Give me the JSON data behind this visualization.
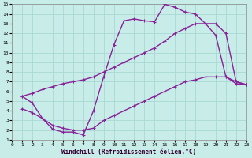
{
  "xlabel": "Windchill (Refroidissement éolien,°C)",
  "xlim": [
    0,
    23
  ],
  "ylim": [
    1,
    15
  ],
  "xticks": [
    0,
    1,
    2,
    3,
    4,
    5,
    6,
    7,
    8,
    9,
    10,
    11,
    12,
    13,
    14,
    15,
    16,
    17,
    18,
    19,
    20,
    21,
    22,
    23
  ],
  "yticks": [
    1,
    2,
    3,
    4,
    5,
    6,
    7,
    8,
    9,
    10,
    11,
    12,
    13,
    14,
    15
  ],
  "bg_color": "#c8ede8",
  "grid_color": "#a8d8d2",
  "line_color": "#882299",
  "line1_x": [
    1,
    2,
    3,
    4,
    5,
    6,
    7,
    8,
    9,
    10,
    11,
    12,
    13,
    14,
    15,
    16,
    17,
    18,
    19,
    20,
    21,
    22,
    23
  ],
  "line1_y": [
    5.5,
    4.8,
    3.2,
    2.1,
    1.8,
    1.8,
    1.5,
    4.0,
    7.5,
    10.8,
    13.3,
    13.5,
    13.3,
    13.2,
    15.0,
    14.7,
    14.2,
    14.0,
    13.0,
    11.8,
    7.5,
    7.0,
    6.7
  ],
  "line2_x": [
    1,
    2,
    3,
    4,
    5,
    6,
    7,
    8,
    9,
    10,
    11,
    12,
    13,
    14,
    15,
    16,
    17,
    18,
    19,
    20,
    21,
    22,
    23
  ],
  "line2_y": [
    5.5,
    5.8,
    6.2,
    6.5,
    6.8,
    7.0,
    7.2,
    7.5,
    8.0,
    8.5,
    9.0,
    9.5,
    10.0,
    10.5,
    11.2,
    12.0,
    12.5,
    13.0,
    13.0,
    13.0,
    12.0,
    7.0,
    6.7
  ],
  "line3_x": [
    1,
    2,
    3,
    4,
    5,
    6,
    7,
    8,
    9,
    10,
    11,
    12,
    13,
    14,
    15,
    16,
    17,
    18,
    19,
    20,
    21,
    22,
    23
  ],
  "line3_y": [
    4.2,
    3.8,
    3.2,
    2.5,
    2.2,
    2.0,
    2.0,
    2.2,
    3.0,
    3.5,
    4.0,
    4.5,
    5.0,
    5.5,
    6.0,
    6.5,
    7.0,
    7.2,
    7.5,
    7.5,
    7.5,
    6.8,
    6.7
  ],
  "linewidth": 1.0,
  "markersize": 3.5
}
